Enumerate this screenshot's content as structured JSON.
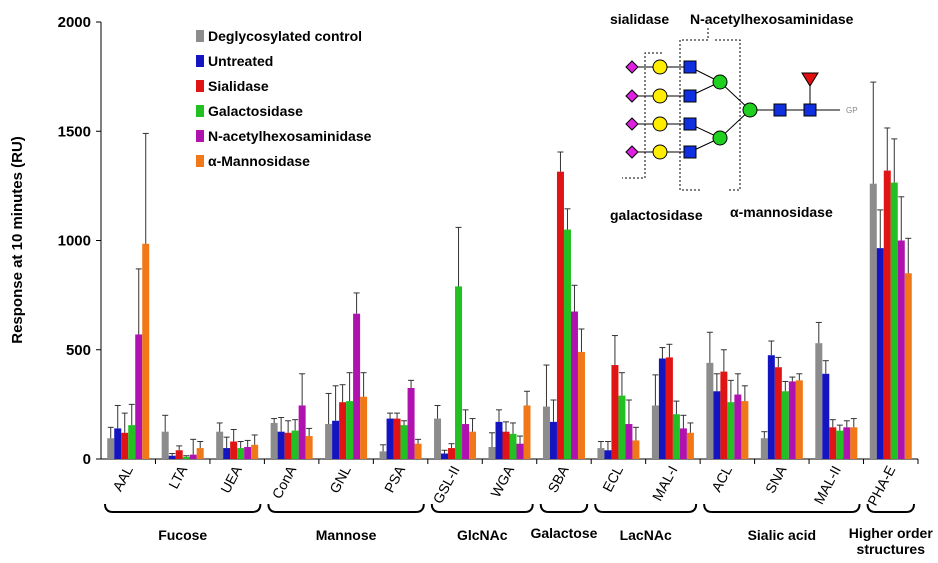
{
  "chart_data": {
    "type": "bar",
    "y_label": "Response at 10 minutes (RU)",
    "ylim": [
      0,
      2000
    ],
    "yticks": [
      0,
      500,
      1000,
      1500,
      2000
    ],
    "category_groups": [
      {
        "label": "Fucose",
        "categories": [
          "AAL",
          "LTA",
          "UEA"
        ]
      },
      {
        "label": "Mannose",
        "categories": [
          "ConA",
          "GNL",
          "PSA"
        ]
      },
      {
        "label": "GlcNAc",
        "categories": [
          "GSL-II",
          "WGA"
        ]
      },
      {
        "label": "Galactose",
        "categories": [
          "SBA"
        ]
      },
      {
        "label": "LacNAc",
        "categories": [
          "ECL",
          "MAL-I"
        ]
      },
      {
        "label": "Sialic acid",
        "categories": [
          "ACL",
          "SNA",
          "MAL-II"
        ]
      },
      {
        "label": "Higher order structures",
        "categories": [
          "PHA-E"
        ]
      }
    ],
    "series": [
      {
        "name": "Deglycosylated control",
        "color": "#8c8c8c",
        "values": [
          95,
          125,
          125,
          165,
          160,
          35,
          185,
          55,
          240,
          50,
          245,
          440,
          95,
          530,
          1260
        ],
        "errors": [
          50,
          75,
          40,
          20,
          140,
          30,
          60,
          65,
          190,
          30,
          140,
          140,
          30,
          95,
          465
        ]
      },
      {
        "name": "Untreated",
        "color": "#1414c0",
        "values": [
          140,
          15,
          50,
          125,
          175,
          185,
          25,
          170,
          170,
          40,
          460,
          310,
          475,
          390,
          965
        ],
        "errors": [
          105,
          10,
          50,
          65,
          160,
          25,
          15,
          55,
          100,
          40,
          50,
          80,
          65,
          60,
          175
        ]
      },
      {
        "name": "Sialidase",
        "color": "#e01414",
        "values": [
          120,
          40,
          80,
          120,
          260,
          185,
          50,
          125,
          1315,
          430,
          465,
          400,
          420,
          145,
          1320
        ],
        "errors": [
          90,
          20,
          55,
          55,
          80,
          25,
          20,
          45,
          90,
          135,
          60,
          100,
          45,
          35,
          195
        ]
      },
      {
        "name": "Galactosidase",
        "color": "#22c022",
        "values": [
          155,
          10,
          50,
          130,
          265,
          155,
          790,
          115,
          1050,
          290,
          205,
          260,
          310,
          130,
          1265
        ],
        "errors": [
          95,
          5,
          30,
          50,
          130,
          20,
          270,
          50,
          95,
          105,
          60,
          100,
          45,
          25,
          200
        ]
      },
      {
        "name": "N-acetylhexosaminidase",
        "color": "#b012b0",
        "values": [
          570,
          20,
          55,
          245,
          665,
          325,
          160,
          70,
          675,
          160,
          140,
          295,
          355,
          145,
          1000
        ],
        "errors": [
          300,
          70,
          30,
          145,
          95,
          35,
          65,
          35,
          120,
          110,
          60,
          95,
          20,
          30,
          200
        ]
      },
      {
        "name": "α-Mannosidase",
        "color": "#f07818",
        "values": [
          985,
          50,
          65,
          105,
          285,
          70,
          125,
          245,
          490,
          85,
          120,
          265,
          360,
          145,
          850
        ],
        "errors": [
          505,
          30,
          45,
          35,
          110,
          20,
          60,
          65,
          105,
          60,
          45,
          70,
          30,
          40,
          160
        ]
      }
    ],
    "annotations": [
      "sialidase",
      "N-acetylhexosaminidase",
      "galactosidase",
      "α-mannosidase",
      "GP"
    ]
  }
}
